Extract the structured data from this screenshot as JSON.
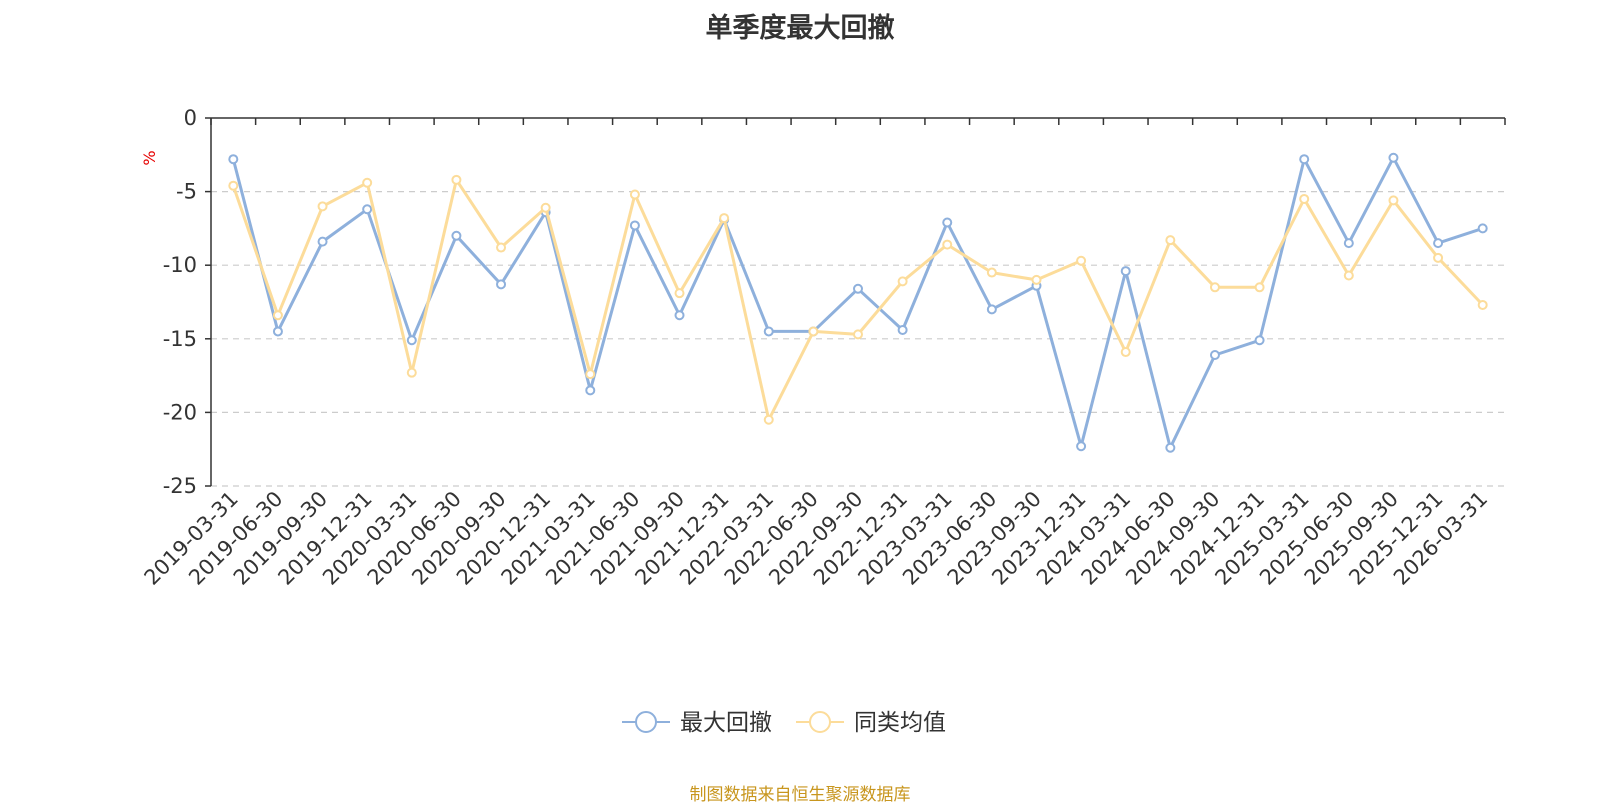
{
  "chart_data": {
    "type": "line",
    "title": "单季度最大回撤",
    "ylabel": "%",
    "ylim": [
      -25,
      0
    ],
    "yticks": [
      0,
      -5,
      -10,
      -15,
      -20,
      -25
    ],
    "grid": true,
    "legend_position": "bottom",
    "x": [
      "2019-03-31",
      "2019-06-30",
      "2019-09-30",
      "2019-12-31",
      "2020-03-31",
      "2020-06-30",
      "2020-09-30",
      "2020-12-31",
      "2021-03-31",
      "2021-06-30",
      "2021-09-30",
      "2021-12-31",
      "2022-03-31",
      "2022-06-30",
      "2022-09-30",
      "2022-12-31",
      "2023-03-31",
      "2023-06-30",
      "2023-09-30",
      "2023-12-31",
      "2024-03-31",
      "2024-06-30",
      "2024-09-30",
      "2024-12-31",
      "2025-03-31",
      "2025-06-30",
      "2025-09-30",
      "2025-12-31",
      "2026-03-31"
    ],
    "series": [
      {
        "name": "最大回撤",
        "color": "#8eb0dc",
        "values": [
          -2.8,
          -14.5,
          -8.4,
          -6.2,
          -15.1,
          -8.0,
          -11.3,
          -6.4,
          -18.5,
          -7.3,
          -13.4,
          -6.9,
          -14.5,
          -14.5,
          -11.6,
          -14.4,
          -7.1,
          -13.0,
          -11.4,
          -22.3,
          -10.4,
          -22.4,
          -16.1,
          -15.1,
          -2.8,
          -8.5,
          -2.7,
          -8.5,
          -7.5
        ]
      },
      {
        "name": "同类均值",
        "color": "#fcdc9a",
        "values": [
          -4.6,
          -13.4,
          -6.0,
          -4.4,
          -17.3,
          -4.2,
          -8.8,
          -6.1,
          -17.4,
          -5.2,
          -11.9,
          -6.8,
          -20.5,
          -14.5,
          -14.7,
          -11.1,
          -8.6,
          -10.5,
          -11.0,
          -9.7,
          -15.9,
          -8.3,
          -11.5,
          -11.5,
          -5.5,
          -10.7,
          -5.6,
          -9.5,
          -12.7
        ]
      }
    ]
  },
  "source_note": "制图数据来自恒生聚源数据库",
  "colors": {
    "axis": "#333333",
    "grid": "#cccccc",
    "ylabel": "#e60000",
    "source": "#c8961e"
  }
}
